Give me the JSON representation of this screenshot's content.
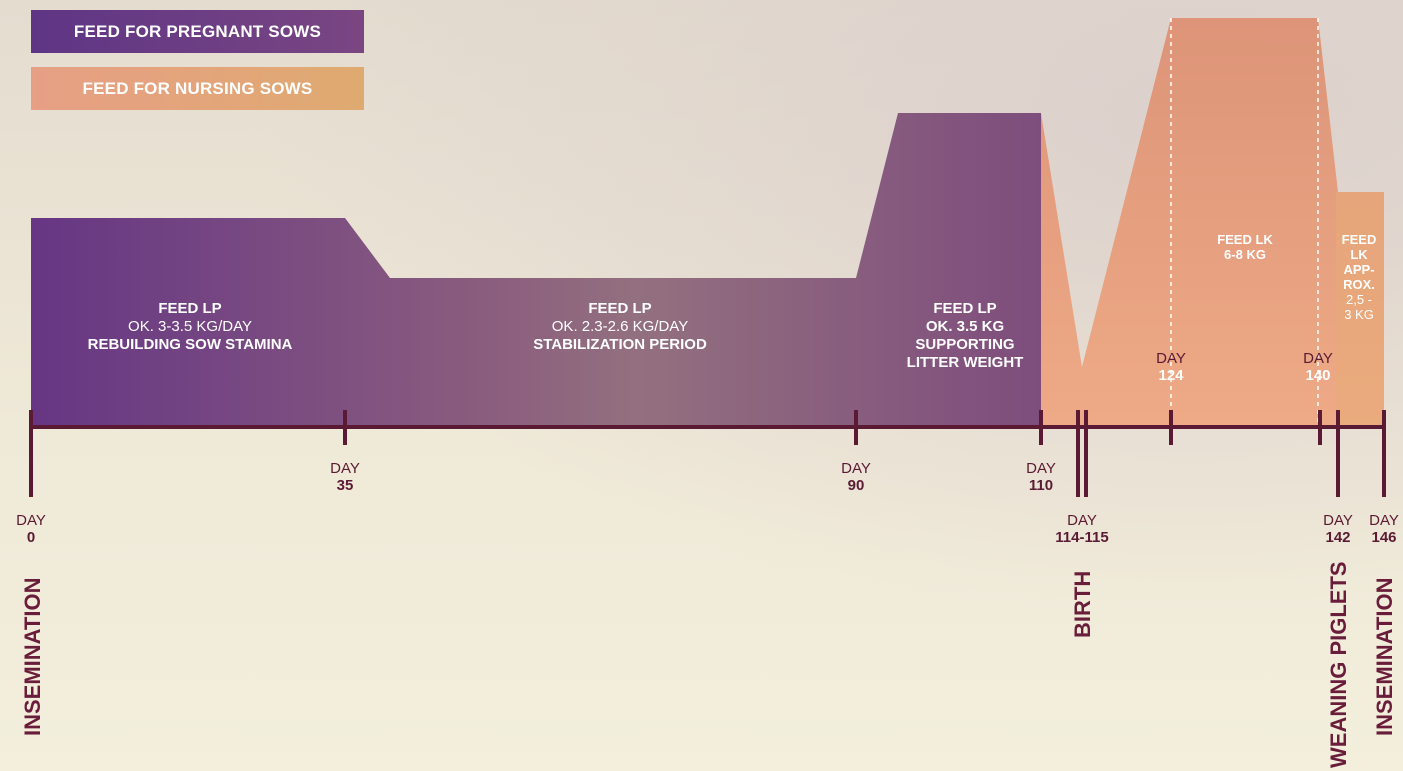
{
  "legend": {
    "pregnant": "FEED FOR PREGNANT SOWS",
    "nursing": "FEED FOR NURSING SOWS"
  },
  "colors": {
    "pregnant": "#6a3a87",
    "nursing": "#e8a485",
    "axis": "#5b1a33"
  },
  "segments": {
    "s1": {
      "title": "FEED LP",
      "line1": "OK. 3-3.5 KG/DAY",
      "line2": "REBUILDING SOW STAMINA"
    },
    "s2": {
      "title": "FEED LP",
      "line1": "OK. 2.3-2.6 KG/DAY",
      "line2": "STABILIZATION PERIOD"
    },
    "s3": {
      "title": "FEED LP",
      "line1": "OK. 3.5 KG",
      "line2": "SUPPORTING",
      "line3": "LITTER WEIGHT"
    },
    "s4": {
      "title": "FEED LK",
      "line1": "6-8 KG"
    },
    "s5": {
      "line1": "FEED",
      "line2": "LK",
      "line3": "APP-",
      "line4": "ROX.",
      "line5": "2,5 -",
      "line6": "3 KG"
    }
  },
  "days": {
    "d0": {
      "label": "DAY",
      "num": "0"
    },
    "d35": {
      "label": "DAY",
      "num": "35"
    },
    "d90": {
      "label": "DAY",
      "num": "90"
    },
    "d110": {
      "label": "DAY",
      "num": "110"
    },
    "d114": {
      "label": "DAY",
      "num": "114-115"
    },
    "d124": {
      "label": "DAY",
      "num": "124"
    },
    "d140": {
      "label": "DAY",
      "num": "140"
    },
    "d142": {
      "label": "DAY",
      "num": "142"
    },
    "d146": {
      "label": "DAY",
      "num": "146"
    }
  },
  "events": {
    "insemination_start": "INSEMINATION",
    "birth": "BIRTH",
    "weaning": "WEANING PIGLETS",
    "insemination_end": "INSEMINATION"
  }
}
